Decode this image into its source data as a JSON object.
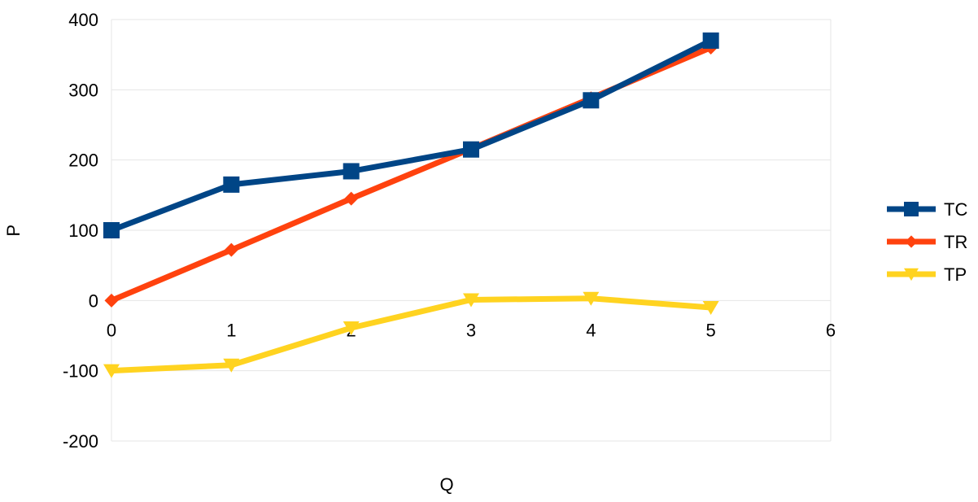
{
  "chart_data": {
    "type": "line",
    "xlabel": "Q",
    "ylabel": "P",
    "xlim": [
      0,
      6
    ],
    "ylim": [
      -200,
      400
    ],
    "x_ticks": [
      0,
      1,
      2,
      3,
      4,
      5,
      6
    ],
    "y_ticks": [
      400,
      300,
      200,
      100,
      0,
      -100,
      -200
    ],
    "grid": true,
    "legend_position": "right",
    "x": [
      0,
      1,
      2,
      3,
      4,
      5
    ],
    "series": [
      {
        "name": "TC",
        "color": "#004586",
        "marker": "square",
        "values": [
          100,
          165,
          184,
          215,
          285,
          370
        ]
      },
      {
        "name": "TR",
        "color": "#ff420e",
        "marker": "diamond",
        "values": [
          0,
          72,
          145,
          216,
          288,
          360
        ]
      },
      {
        "name": "TP",
        "color": "#ffd320",
        "marker": "triangle-down",
        "values": [
          -100,
          -92,
          -39,
          1,
          3,
          -10
        ]
      }
    ]
  }
}
